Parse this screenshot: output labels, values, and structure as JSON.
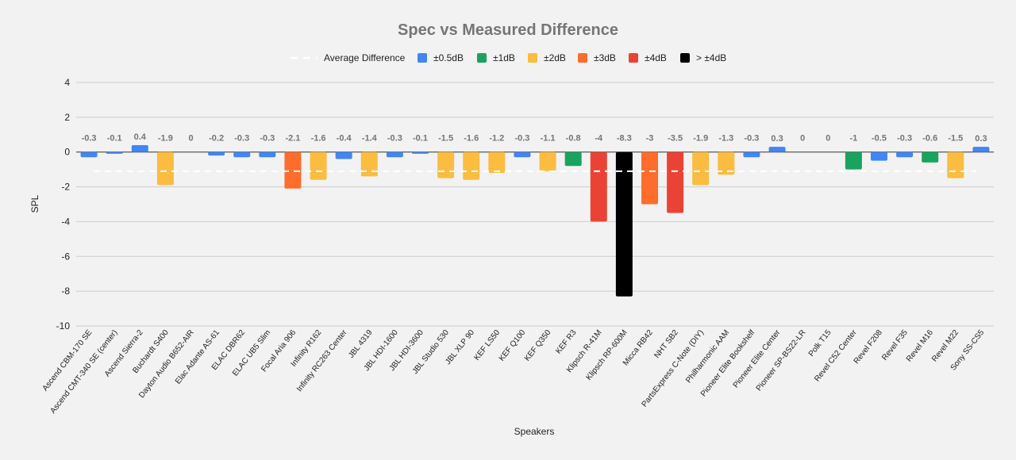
{
  "chart_data": {
    "type": "bar",
    "title": "Spec vs Measured Difference",
    "xlabel": "Speakers",
    "ylabel": "SPL",
    "ylim": [
      -10,
      4
    ],
    "yticks": [
      4,
      2,
      0,
      -2,
      -4,
      -6,
      -8,
      -10
    ],
    "grid": true,
    "legend_position": "top",
    "average_difference": -1.1,
    "categories": [
      "Ascend CBM-170 SE",
      "Ascend CMT-340 SE (center)",
      "Ascend Sierra-2",
      "Buchardt S400",
      "Dayton Audio B652-AIR",
      "Elac Adante AS-61",
      "ELAC DBR62",
      "ELAC UB5 Slim",
      "Focal Aria 906",
      "Infinity R162",
      "Infinity RC263 Center",
      "JBL 4319",
      "JBL HDI-1600",
      "JBL HDI-3600",
      "JBL Studio 530",
      "JBL XLP 90",
      "KEF LS50",
      "KEF Q100",
      "KEF Q350",
      "KEF R3",
      "Klipsch R-41M",
      "Klipsch RP-600M",
      "Micca RB42",
      "NHT SB2",
      "PartsExpress C-Note (DIY)",
      "Philharmonic AAM",
      "Pioneer Elite Bookshelf",
      "Pioneer Elite Center",
      "Pioneer SP-BS22-LR",
      "Polk T15",
      "Revel C52 Center",
      "Revel F208",
      "Revel F35",
      "Revel M16",
      "Revel M22",
      "Sony SS-CS5"
    ],
    "values": [
      -0.3,
      -0.1,
      0.4,
      -1.9,
      0,
      -0.2,
      -0.3,
      -0.3,
      -2.1,
      -1.6,
      -0.4,
      -1.4,
      -0.3,
      -0.1,
      -1.5,
      -1.6,
      -1.2,
      -0.3,
      -1.1,
      -0.8,
      -4,
      -8.3,
      -3,
      -3.5,
      -1.9,
      -1.3,
      -0.3,
      0.3,
      0,
      0,
      -1,
      -0.5,
      -0.3,
      -0.6,
      -1.5,
      0.3
    ],
    "legend": [
      {
        "label": "Average Difference",
        "kind": "dashed-line",
        "color": "#ffffff"
      },
      {
        "label": "±0.5dB",
        "kind": "box",
        "color": "#4285f4"
      },
      {
        "label": "±1dB",
        "kind": "box",
        "color": "#1aa260"
      },
      {
        "label": "±2dB",
        "kind": "box",
        "color": "#fbbc40"
      },
      {
        "label": "±3dB",
        "kind": "box",
        "color": "#ff6d2c"
      },
      {
        "label": "±4dB",
        "kind": "box",
        "color": "#ea4335"
      },
      {
        "label": "> ±4dB",
        "kind": "box",
        "color": "#000000"
      }
    ]
  }
}
